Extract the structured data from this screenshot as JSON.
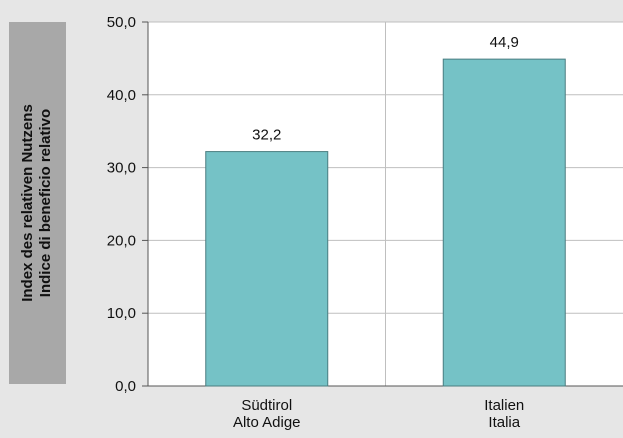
{
  "chart_data": {
    "type": "bar",
    "ylabel_lines": [
      "Index des relativen Nutzens",
      "Indice di beneficio relativo"
    ],
    "categories": [
      [
        "Südtirol",
        "Alto Adige"
      ],
      [
        "Italien",
        "Italia"
      ]
    ],
    "values": [
      32.2,
      44.9
    ],
    "value_labels": [
      "32,2",
      "44,9"
    ],
    "y_ticks": [
      {
        "value": 0,
        "label": "0,0"
      },
      {
        "value": 10,
        "label": "10,0"
      },
      {
        "value": 20,
        "label": "20,0"
      },
      {
        "value": 30,
        "label": "30,0"
      },
      {
        "value": 40,
        "label": "40,0"
      },
      {
        "value": 50,
        "label": "50,0"
      }
    ],
    "ylim": [
      0,
      50
    ],
    "grid": true,
    "colors": {
      "bar": "#75c2c6",
      "bar_border": "#4a7d80",
      "plot_bg": "#ffffff",
      "page_bg": "#e6e6e6",
      "gridline": "#bfbfbf"
    }
  }
}
